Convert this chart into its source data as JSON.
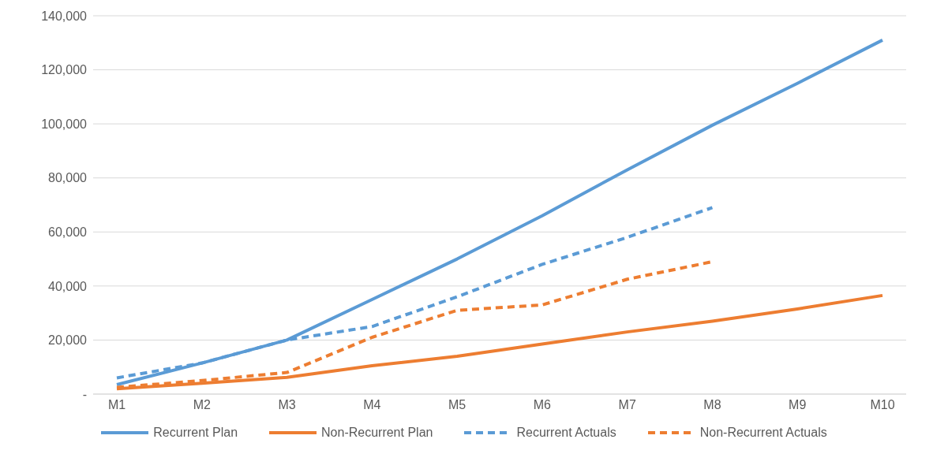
{
  "chart_data": {
    "type": "line",
    "categories": [
      "M1",
      "M2",
      "M3",
      "M4",
      "M5",
      "M6",
      "M7",
      "M8",
      "M9",
      "M10"
    ],
    "series": [
      {
        "name": "Recurrent Plan",
        "color": "#5b9bd5",
        "line_style": "solid",
        "values": [
          3500,
          11500,
          20000,
          35000,
          50000,
          66000,
          83000,
          99500,
          115000,
          131000
        ]
      },
      {
        "name": "Non-Recurrent Plan",
        "color": "#ed7d31",
        "line_style": "solid",
        "values": [
          2000,
          4000,
          6200,
          10500,
          14000,
          18500,
          23000,
          27000,
          31500,
          36500
        ]
      },
      {
        "name": "Recurrent Actuals",
        "color": "#5b9bd5",
        "line_style": "dashed",
        "values": [
          6000,
          11500,
          20000,
          25000,
          36000,
          48000,
          58000,
          69000,
          null,
          null
        ]
      },
      {
        "name": "Non-Recurrent Actuals",
        "color": "#ed7d31",
        "line_style": "dashed",
        "values": [
          2500,
          5000,
          8000,
          21000,
          31000,
          33000,
          42500,
          49000,
          null,
          null
        ]
      }
    ],
    "ylim": [
      0,
      140000
    ],
    "yticks": [
      {
        "value": 0,
        "label": "-"
      },
      {
        "value": 20000,
        "label": "20,000"
      },
      {
        "value": 40000,
        "label": "40,000"
      },
      {
        "value": 60000,
        "label": "60,000"
      },
      {
        "value": 80000,
        "label": "80,000"
      },
      {
        "value": 100000,
        "label": "100,000"
      },
      {
        "value": 120000,
        "label": "120,000"
      },
      {
        "value": 140000,
        "label": "140,000"
      }
    ],
    "grid": "y",
    "legend": "bottom",
    "marker": "none"
  }
}
